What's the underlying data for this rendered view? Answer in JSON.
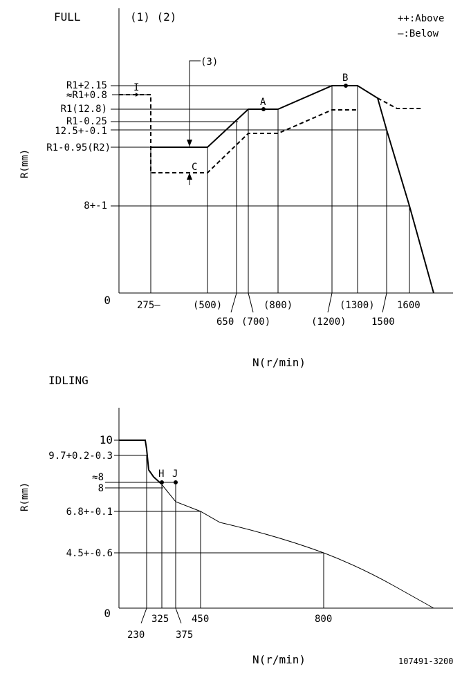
{
  "full": {
    "title": "FULL",
    "notes": "(1) (2)",
    "legend_above": "++:Above",
    "legend_below": "—:Below",
    "note3": "(3)",
    "point_a": "A",
    "point_b": "B",
    "point_c": "C",
    "y_axis_title": "R(mm)",
    "x_axis_title": "N(r/min)",
    "y_labels": {
      "r1_215": "R1+2.15",
      "r1_08": "≈R1+0.8",
      "r1_128": "R1(12.8)",
      "r1_025": "R1-0.25",
      "v125": "12.5+-0.1",
      "r1_095": "R1-0.95(R2)",
      "v8": "8+-1",
      "zero": "0"
    },
    "x_labels": {
      "n275": "275—",
      "n500": "(500)",
      "n650": "650",
      "n700": "(700)",
      "n800": "(800)",
      "n1200": "(1200)",
      "n1300": "(1300)",
      "n1500": "1500",
      "n1600": "1600"
    },
    "i_mark": "I"
  },
  "idling": {
    "title": "IDLING",
    "y_axis_title": "R(mm)",
    "x_axis_title": "N(r/min)",
    "point_h": "H",
    "point_j": "J",
    "y_labels": {
      "v10": "10",
      "v97": "9.7+0.2-0.3",
      "approx8": "≈8",
      "v8": "8",
      "v68": "6.8+-0.1",
      "v45": "4.5+-0.6",
      "zero": "0"
    },
    "x_labels": {
      "n230": "230",
      "n325": "325",
      "n375": "375",
      "n450": "450",
      "n800": "800"
    }
  },
  "doc_number": "107491-3200"
}
